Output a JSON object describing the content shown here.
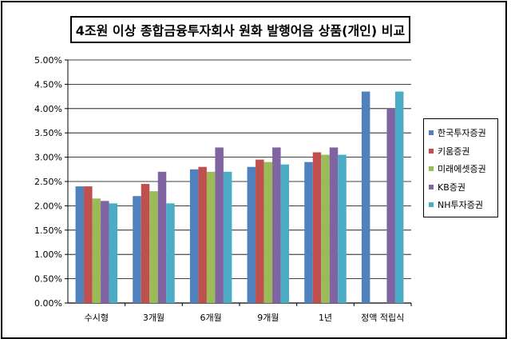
{
  "chart_data": {
    "type": "bar",
    "title": "4조원 이상 종합금융투자회사 원화 발행어음 상품(개인) 비교",
    "categories": [
      "수시형",
      "3개월",
      "6개월",
      "9개월",
      "1년",
      "정액 적립식"
    ],
    "y_ticks": [
      "0.00%",
      "0.50%",
      "1.00%",
      "1.50%",
      "2.00%",
      "2.50%",
      "3.00%",
      "3.50%",
      "4.00%",
      "4.50%",
      "5.00%"
    ],
    "ylim": [
      0,
      5
    ],
    "y_unit": "%",
    "grid": true,
    "legend_position": "right",
    "series": [
      {
        "name": "한국투자증권",
        "color": "#4F81BD",
        "values": [
          2.4,
          2.2,
          2.75,
          2.8,
          2.9,
          4.35
        ]
      },
      {
        "name": "키움증권",
        "color": "#C0504D",
        "values": [
          2.4,
          2.45,
          2.8,
          2.95,
          3.1,
          null
        ]
      },
      {
        "name": "미래에셋증권",
        "color": "#9BBB59",
        "values": [
          2.15,
          2.3,
          2.7,
          2.9,
          3.05,
          null
        ]
      },
      {
        "name": "KB증권",
        "color": "#8064A2",
        "values": [
          2.1,
          2.7,
          3.2,
          3.2,
          3.2,
          4.0
        ]
      },
      {
        "name": "NH투자증권",
        "color": "#4BACC6",
        "values": [
          2.05,
          2.05,
          2.7,
          2.85,
          3.05,
          4.35
        ]
      }
    ]
  }
}
